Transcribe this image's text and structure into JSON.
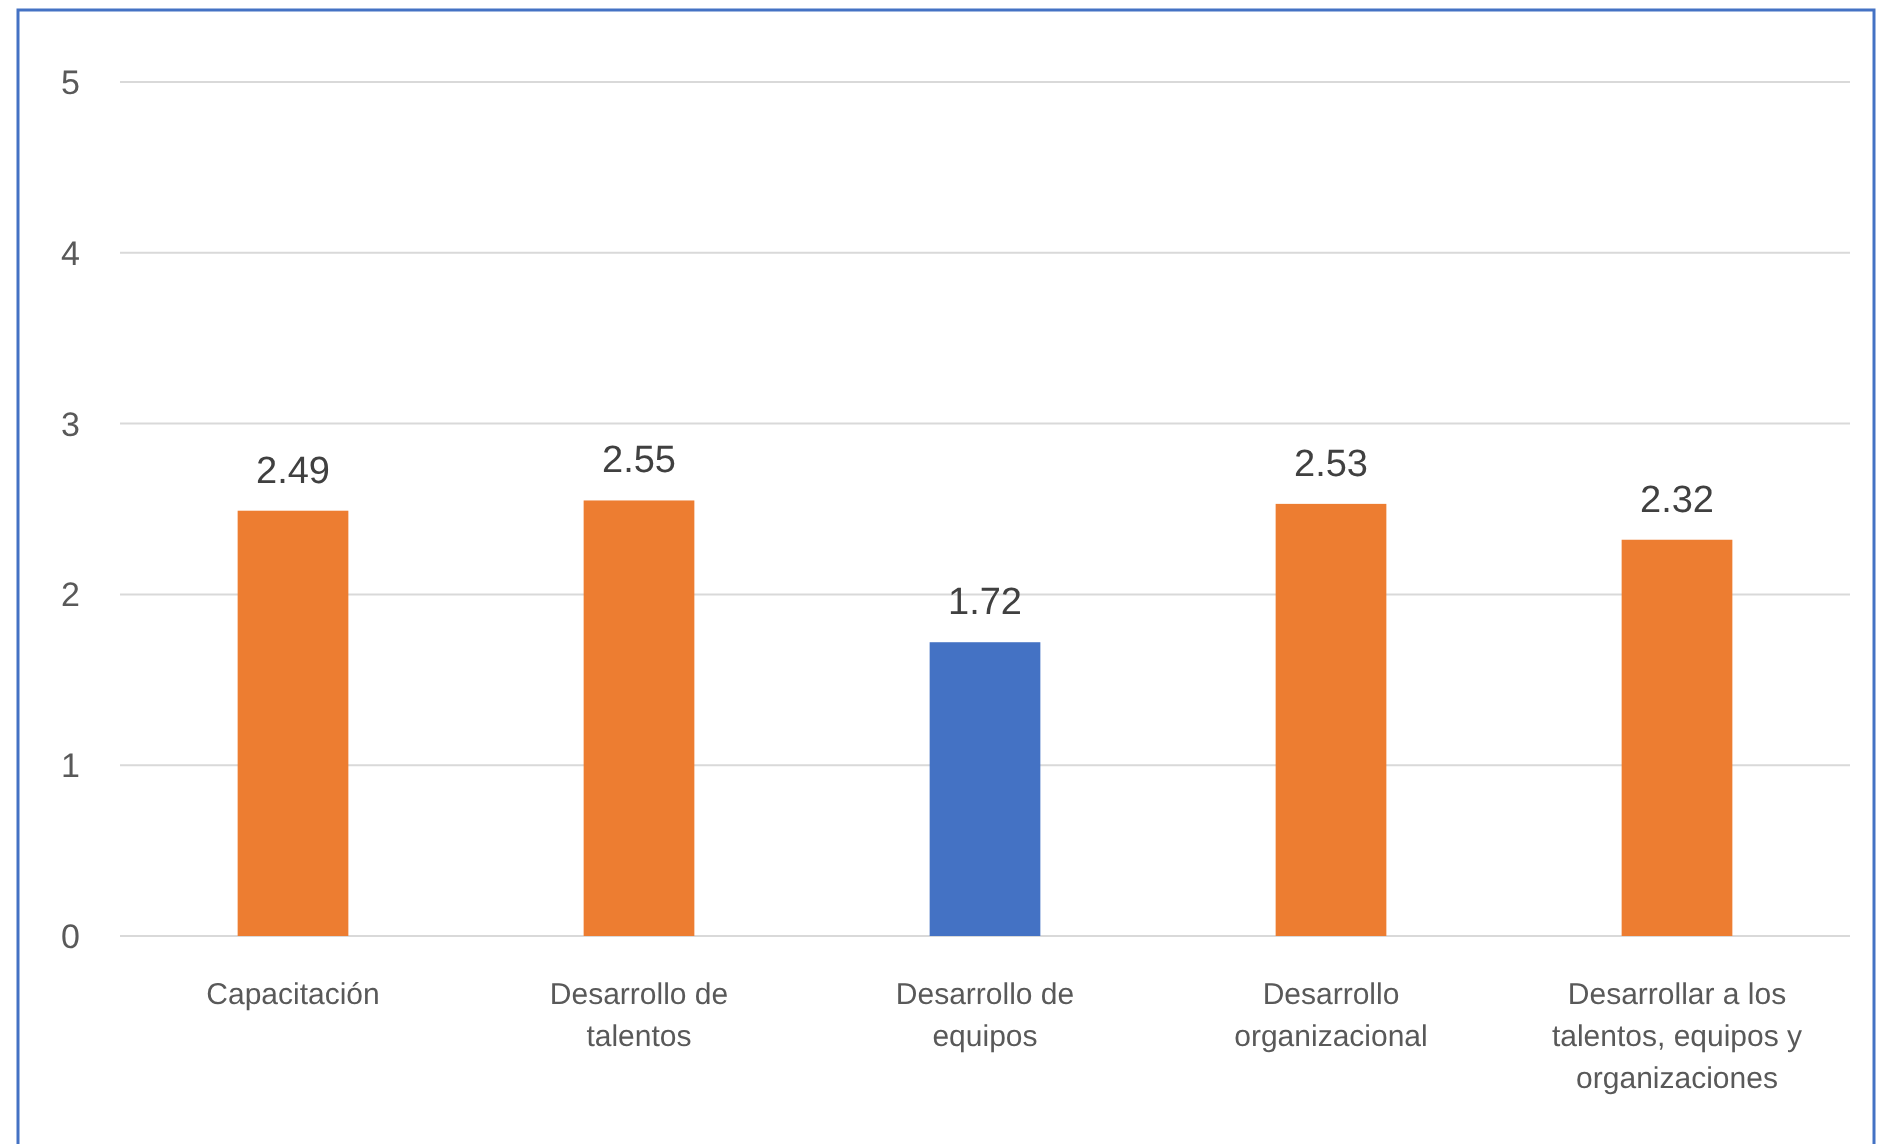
{
  "chart_data": {
    "type": "bar",
    "categories": [
      "Capacitación",
      "Desarrollo de talentos",
      "Desarrollo de equipos",
      "Desarrollo organizacional",
      "Desarrollar a los talentos, equipos y organizaciones"
    ],
    "values": [
      2.49,
      2.55,
      1.72,
      2.53,
      2.32
    ],
    "colors": [
      "#ed7d31",
      "#ed7d31",
      "#4472c4",
      "#ed7d31",
      "#ed7d31"
    ],
    "ylim": [
      0,
      5
    ],
    "yticks": [
      0,
      1,
      2,
      3,
      4,
      5
    ],
    "grid": "y",
    "data_labels": true
  }
}
